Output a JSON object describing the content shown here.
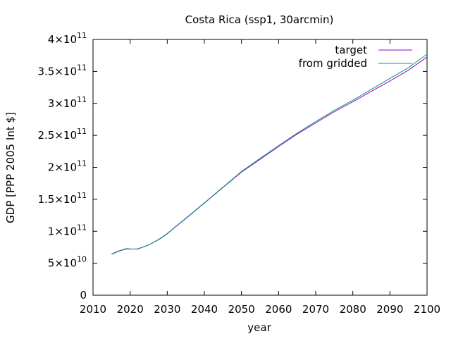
{
  "chart_data": {
    "type": "line",
    "title": "Costa Rica (ssp1, 30arcmin)",
    "xlabel": "year",
    "ylabel": "GDP [PPP 2005 Int $]",
    "xlim": [
      2010,
      2100
    ],
    "ylim": [
      0,
      400000000000
    ],
    "x_ticks": [
      2010,
      2020,
      2030,
      2040,
      2050,
      2060,
      2070,
      2080,
      2090,
      2100
    ],
    "y_ticks": [
      {
        "value": 0,
        "mantissa": "0",
        "exponent": ""
      },
      {
        "value": 50000000000,
        "mantissa": "5×10",
        "exponent": "10"
      },
      {
        "value": 100000000000,
        "mantissa": "1×10",
        "exponent": "11"
      },
      {
        "value": 150000000000,
        "mantissa": "1.5×10",
        "exponent": "11"
      },
      {
        "value": 200000000000,
        "mantissa": "2×10",
        "exponent": "11"
      },
      {
        "value": 250000000000,
        "mantissa": "2.5×10",
        "exponent": "11"
      },
      {
        "value": 300000000000,
        "mantissa": "3×10",
        "exponent": "11"
      },
      {
        "value": 350000000000,
        "mantissa": "3.5×10",
        "exponent": "11"
      },
      {
        "value": 400000000000,
        "mantissa": "4×10",
        "exponent": "11"
      }
    ],
    "grid": false,
    "legend_position": "top-right",
    "x": [
      2015,
      2017,
      2019,
      2020,
      2022,
      2025,
      2028,
      2030,
      2035,
      2040,
      2045,
      2050,
      2055,
      2060,
      2065,
      2070,
      2075,
      2080,
      2085,
      2090,
      2095,
      2100
    ],
    "series": [
      {
        "name": "target",
        "color": "#9400d3",
        "values": [
          64000000000,
          69000000000,
          72500000000,
          72000000000,
          72500000000,
          78500000000,
          88000000000,
          96000000000,
          120000000000,
          144000000000,
          168500000000,
          192500000000,
          212500000000,
          232500000000,
          252000000000,
          269500000000,
          287000000000,
          302500000000,
          319000000000,
          335000000000,
          352000000000,
          372500000000
        ]
      },
      {
        "name": "from gridded",
        "color": "#009e73",
        "values": [
          64500000000,
          69500000000,
          73000000000,
          72500000000,
          72000000000,
          78500000000,
          88500000000,
          96500000000,
          120500000000,
          144500000000,
          169000000000,
          193500000000,
          214000000000,
          234000000000,
          253500000000,
          271500000000,
          289000000000,
          305000000000,
          322000000000,
          339000000000,
          356000000000,
          377000000000
        ]
      }
    ]
  }
}
